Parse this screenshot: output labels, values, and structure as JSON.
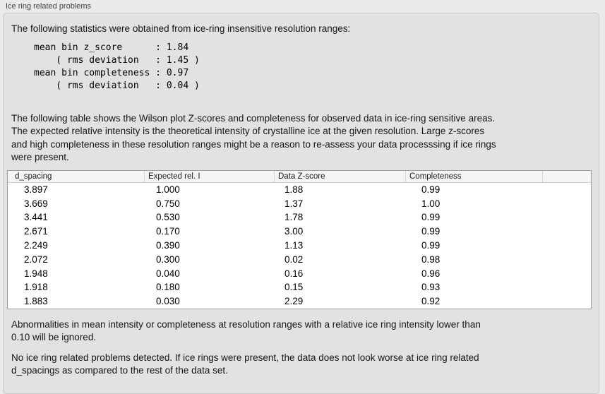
{
  "panel": {
    "title": "Ice ring related problems"
  },
  "intro": {
    "text": "The following statistics were obtained from ice-ring insensitive resolution ranges:",
    "stats": "mean bin z_score      : 1.84\n    ( rms deviation   : 1.45 )\nmean bin completeness : 0.97\n    ( rms deviation   : 0.04 )"
  },
  "description": {
    "text": "The following table shows the Wilson plot Z-scores and completeness for observed data in ice-ring sensitive areas.\nThe expected relative intensity is the theoretical intensity of crystalline ice at the given resolution. Large z-scores\nand high completeness in these resolution ranges might be a reason to re-assess your data processsing if ice rings\nwere present."
  },
  "table": {
    "columns": [
      "d_spacing",
      "Expected rel. I",
      "Data Z-score",
      "Completeness"
    ],
    "rows": [
      [
        "3.897",
        "1.000",
        "1.88",
        "0.99"
      ],
      [
        "3.669",
        "0.750",
        "1.37",
        "1.00"
      ],
      [
        "3.441",
        "0.530",
        "1.78",
        "0.99"
      ],
      [
        "2.671",
        "0.170",
        "3.00",
        "0.99"
      ],
      [
        "2.249",
        "0.390",
        "1.13",
        "0.99"
      ],
      [
        "2.072",
        "0.300",
        "0.02",
        "0.98"
      ],
      [
        "1.948",
        "0.040",
        "0.16",
        "0.96"
      ],
      [
        "1.918",
        "0.180",
        "0.15",
        "0.93"
      ],
      [
        "1.883",
        "0.030",
        "2.29",
        "0.92"
      ]
    ]
  },
  "notes": {
    "ignore": "Abnormalities in mean intensity or completeness at resolution ranges with a relative ice ring intensity lower than\n0.10 will be ignored.",
    "conclusion": "No ice ring related problems detected. If ice rings were present, the data does not look worse at ice ring related\nd_spacings as compared to the rest of the data set."
  },
  "colors": {
    "panel_bg": "#e2e2e2",
    "page_bg": "#ebebeb",
    "table_border": "#9e9e9e",
    "header_bg": "#f5f5f5"
  }
}
